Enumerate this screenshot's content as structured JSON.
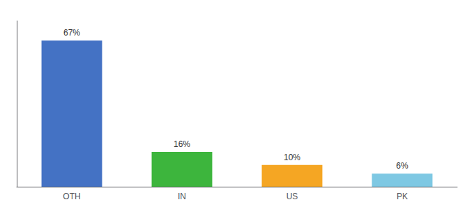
{
  "chart_data": {
    "type": "bar",
    "categories": [
      "OTH",
      "IN",
      "US",
      "PK"
    ],
    "values": [
      67,
      16,
      10,
      6
    ],
    "value_labels": [
      "67%",
      "16%",
      "10%",
      "6%"
    ],
    "colors": [
      "#4472c4",
      "#3db53d",
      "#f5a623",
      "#7ec8e3"
    ],
    "ylim": [
      0,
      76
    ],
    "data_labels": true,
    "tick_labels": "x",
    "grid": false
  }
}
